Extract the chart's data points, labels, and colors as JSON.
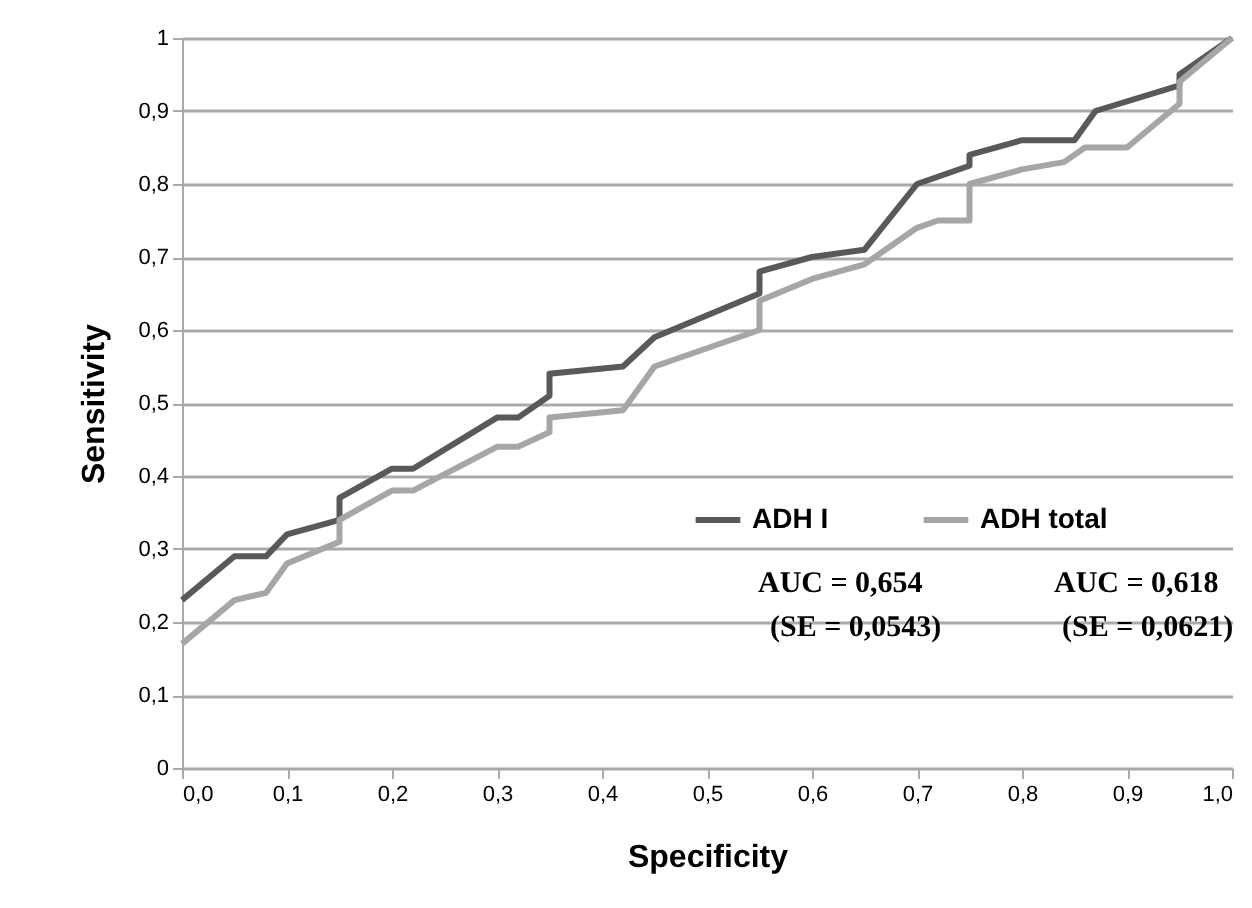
{
  "chart_data": {
    "type": "line",
    "xlabel": "Specificity",
    "ylabel": "Sensitivity",
    "xlim": [
      0,
      1
    ],
    "ylim": [
      0,
      1
    ],
    "xticks": [
      {
        "value": 0,
        "label": "0,0"
      },
      {
        "value": 0.1,
        "label": "0,1"
      },
      {
        "value": 0.2,
        "label": "0,2"
      },
      {
        "value": 0.3,
        "label": "0,3"
      },
      {
        "value": 0.4,
        "label": "0,4"
      },
      {
        "value": 0.5,
        "label": "0,5"
      },
      {
        "value": 0.6,
        "label": "0,6"
      },
      {
        "value": 0.7,
        "label": "0,7"
      },
      {
        "value": 0.8,
        "label": "0,8"
      },
      {
        "value": 0.9,
        "label": "0,9"
      },
      {
        "value": 1,
        "label": "1,0"
      }
    ],
    "yticks": [
      0,
      {
        "value": 0.1,
        "label": "0,1"
      },
      {
        "value": 0.2,
        "label": "0,2"
      },
      {
        "value": 0.3,
        "label": "0,3"
      },
      {
        "value": 0.4,
        "label": "0,4"
      },
      {
        "value": 0.5,
        "label": "0,5"
      },
      {
        "value": 0.6,
        "label": "0,6"
      },
      {
        "value": 0.7,
        "label": "0,7"
      },
      {
        "value": 0.8,
        "label": "0,8"
      },
      {
        "value": 0.9,
        "label": "0,9"
      },
      1
    ],
    "grid": "y",
    "legend": "right",
    "marker": "none",
    "line_style": "solid",
    "series": [
      {
        "name": "ADH I",
        "color": "#595959",
        "x": [
          0,
          0.05,
          0.08,
          0.1,
          0.15,
          0.15,
          0.2,
          0.22,
          0.3,
          0.32,
          0.35,
          0.35,
          0.42,
          0.45,
          0.55,
          0.55,
          0.6,
          0.65,
          0.7,
          0.75,
          0.75,
          0.8,
          0.85,
          0.87,
          0.95,
          0.95,
          1
        ],
        "values": [
          0.23,
          0.29,
          0.29,
          0.32,
          0.34,
          0.37,
          0.41,
          0.41,
          0.48,
          0.48,
          0.51,
          0.54,
          0.55,
          0.59,
          0.65,
          0.68,
          0.7,
          0.71,
          0.8,
          0.825,
          0.84,
          0.86,
          0.86,
          0.9,
          0.935,
          0.95,
          1
        ]
      },
      {
        "name": "ADH total",
        "color": "#a6a6a6",
        "x": [
          0,
          0.05,
          0.08,
          0.1,
          0.15,
          0.15,
          0.2,
          0.22,
          0.3,
          0.32,
          0.35,
          0.35,
          0.42,
          0.45,
          0.55,
          0.55,
          0.6,
          0.65,
          0.7,
          0.72,
          0.75,
          0.75,
          0.8,
          0.84,
          0.86,
          0.9,
          0.95,
          0.95,
          1
        ],
        "values": [
          0.17,
          0.23,
          0.24,
          0.28,
          0.31,
          0.34,
          0.38,
          0.38,
          0.44,
          0.44,
          0.46,
          0.48,
          0.49,
          0.55,
          0.6,
          0.64,
          0.67,
          0.69,
          0.74,
          0.75,
          0.75,
          0.8,
          0.82,
          0.83,
          0.85,
          0.85,
          0.91,
          0.94,
          1
        ]
      }
    ],
    "annotations": [
      "AUC = 0,654",
      "(SE = 0,0543)",
      "AUC = 0,618",
      "(SE = 0,0621)"
    ]
  }
}
